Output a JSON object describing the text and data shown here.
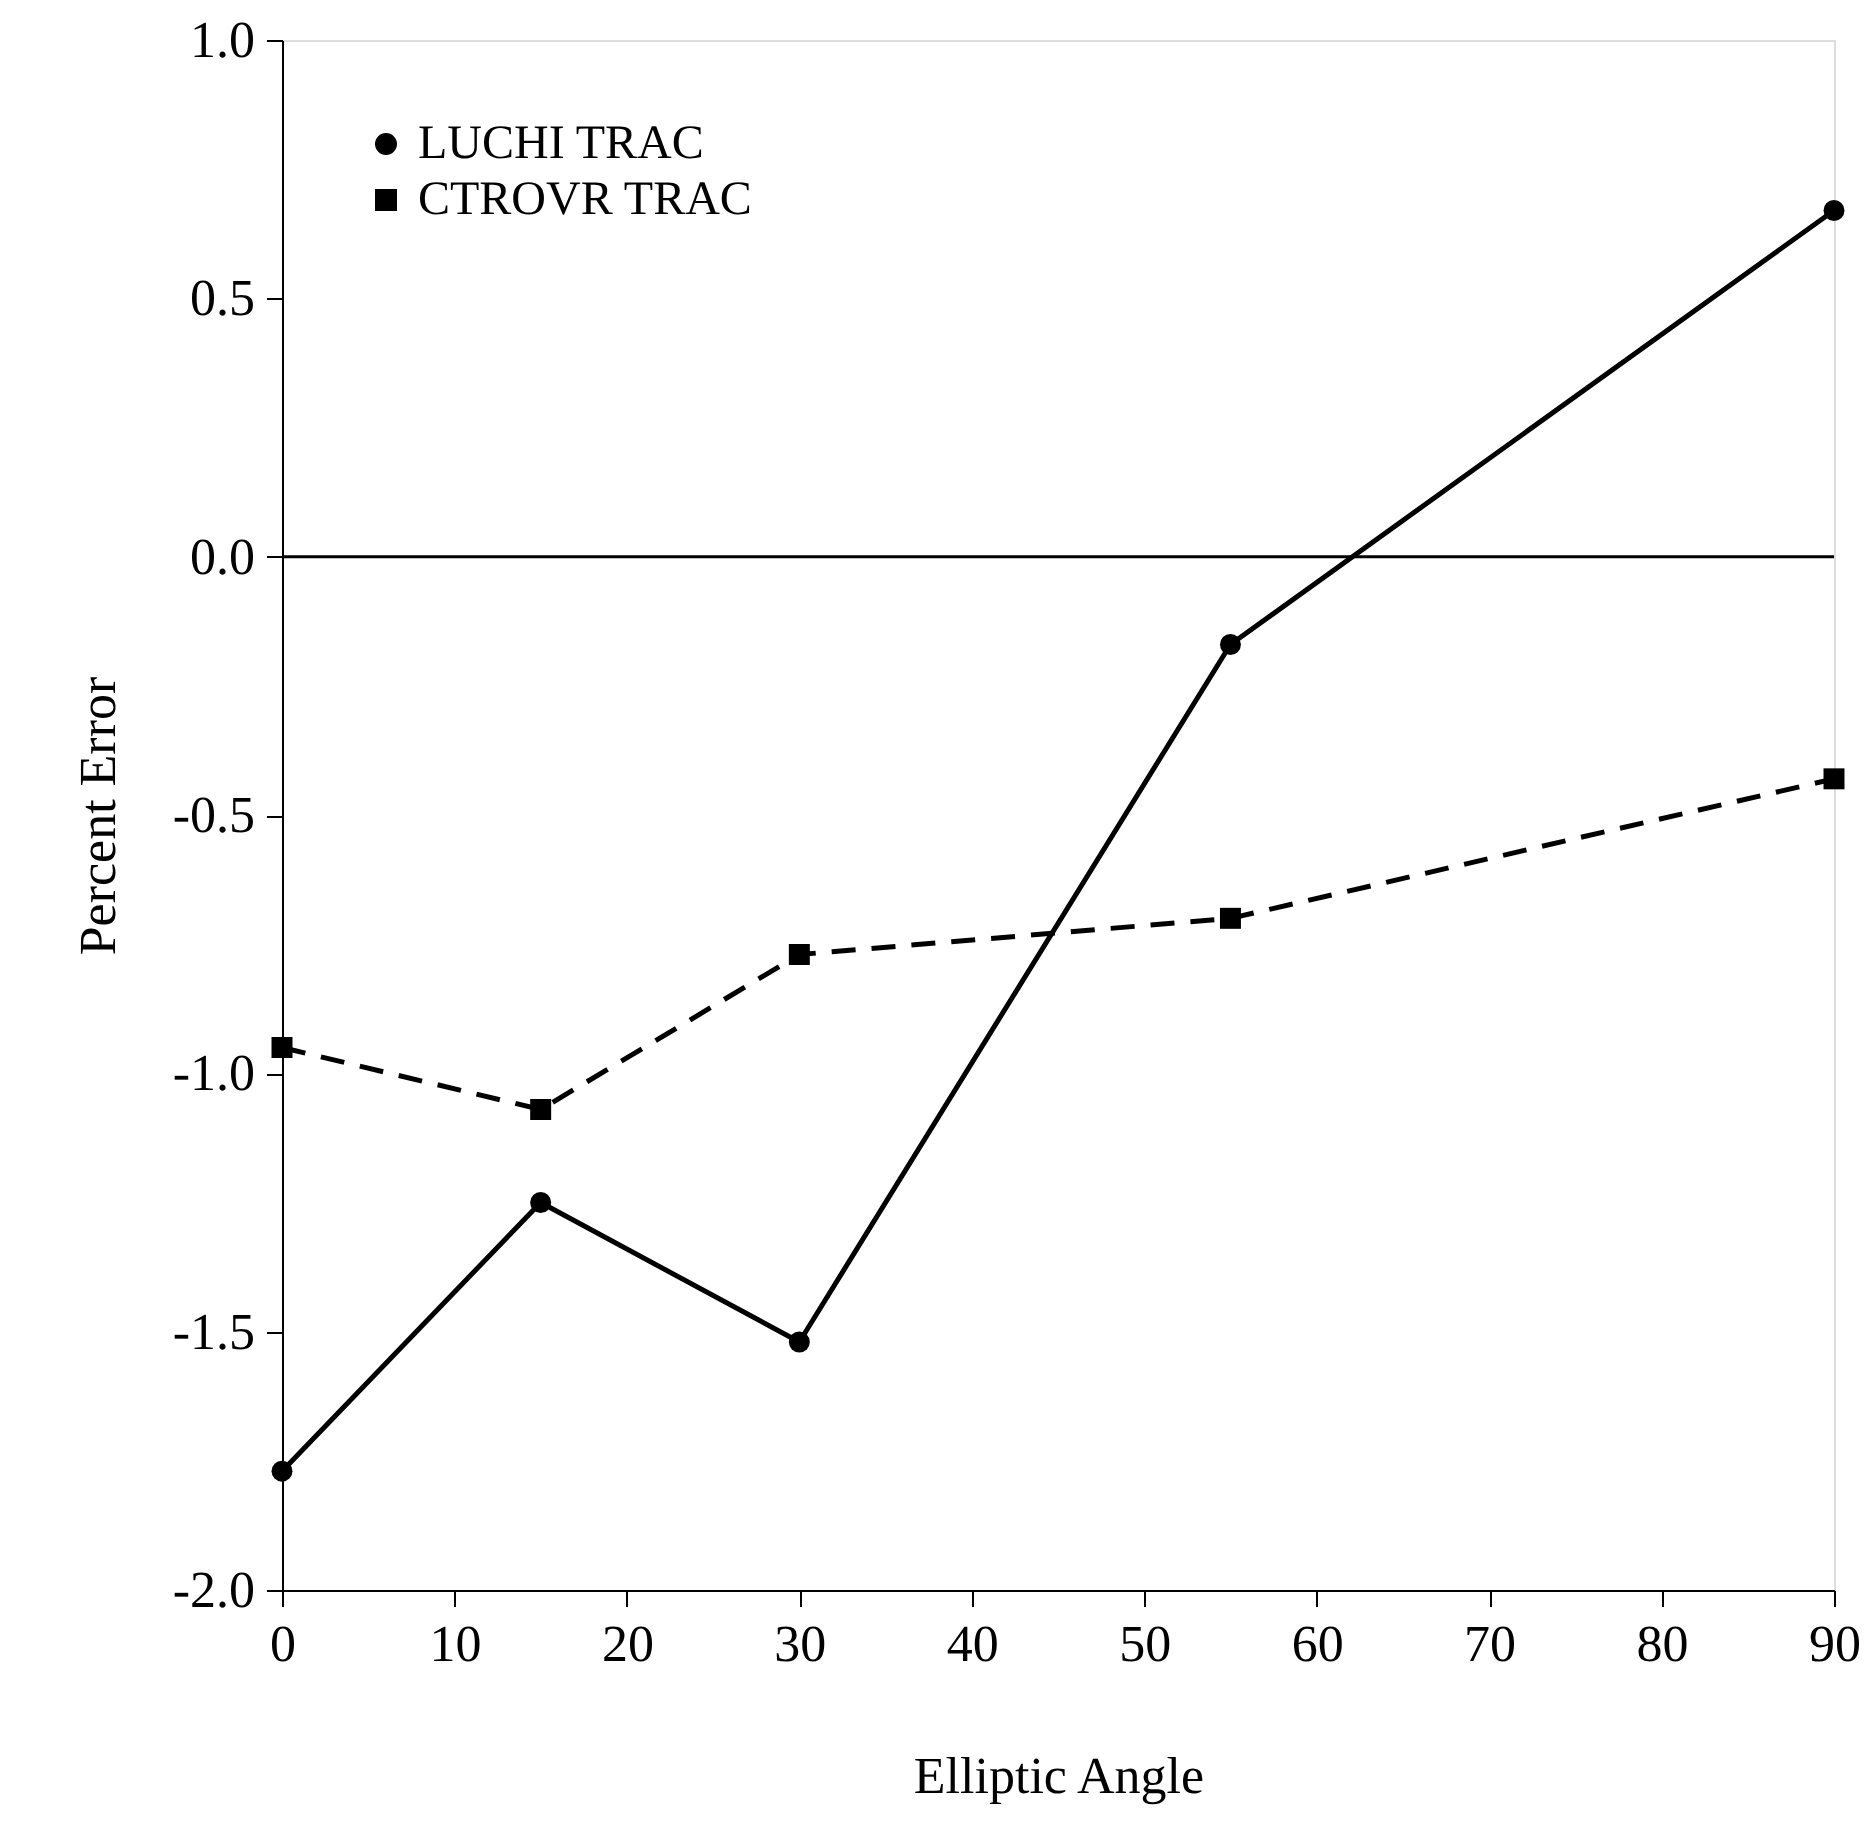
{
  "chart_data": {
    "type": "line",
    "xlabel": "Elliptic Angle",
    "ylabel": "Percent Error",
    "x": [
      0,
      15,
      30,
      55,
      90
    ],
    "series": [
      {
        "name": "LUCHI TRAC",
        "color": "#000000",
        "marker": "circle",
        "line_style": "solid",
        "values": [
          -1.77,
          -1.25,
          -1.52,
          -0.17,
          0.67
        ]
      },
      {
        "name": "CTROVR TRAC",
        "color": "#000000",
        "marker": "square",
        "line_style": "dashed",
        "values": [
          -0.95,
          -1.07,
          -0.77,
          -0.7,
          -0.43
        ]
      }
    ],
    "xlim": [
      0,
      90
    ],
    "xticks": [
      0,
      10,
      20,
      30,
      40,
      50,
      60,
      70,
      80,
      90
    ],
    "ylim": [
      -2,
      1
    ],
    "yticks": [
      {
        "value": -2,
        "label": "-2.0"
      },
      {
        "value": -1.5,
        "label": "-1.5"
      },
      {
        "value": -1,
        "label": "-1.0"
      },
      {
        "value": -0.5,
        "label": "-0.5"
      },
      {
        "value": 0,
        "label": "0.0"
      },
      {
        "value": 0.5,
        "label": "0.5"
      },
      {
        "value": 1,
        "label": "1.0"
      }
    ],
    "ref_lines": [
      {
        "axis": "y",
        "value": 0,
        "color": "#000000"
      }
    ],
    "legend": "top left",
    "grid": false
  }
}
